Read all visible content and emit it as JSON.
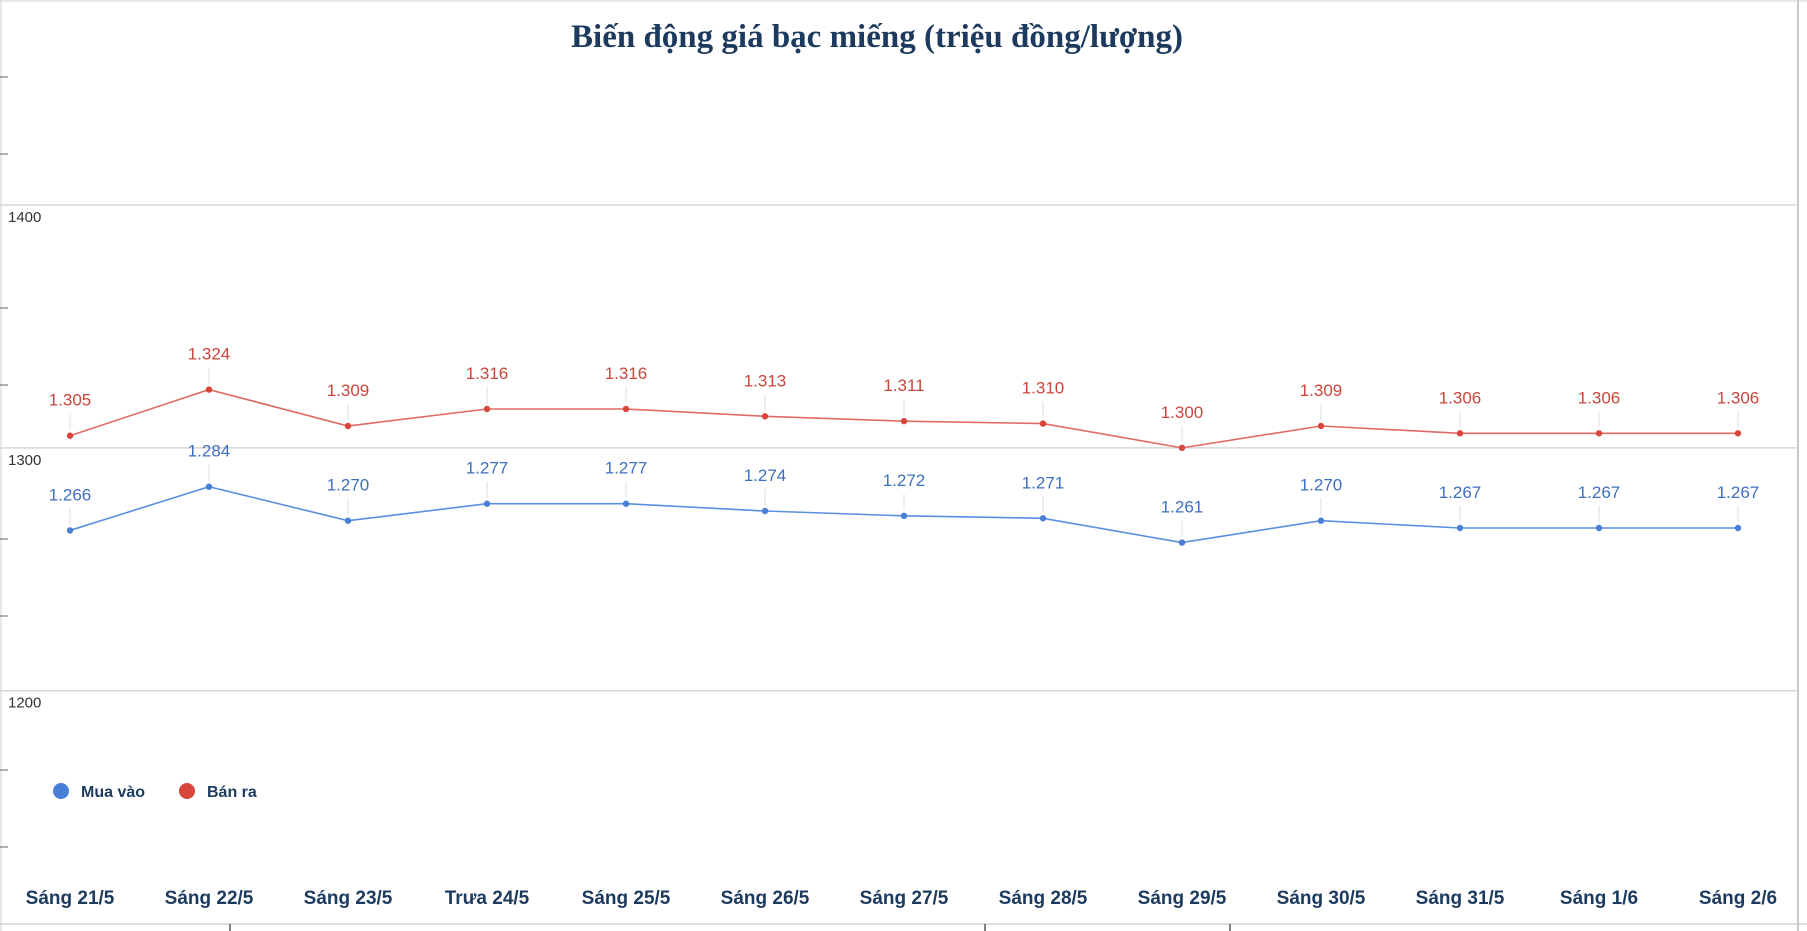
{
  "chart_data": {
    "type": "line",
    "title": "Biến động giá bạc miếng (triệu đồng/lượng)",
    "xlabel": "",
    "ylabel": "",
    "categories": [
      "Sáng 21/5",
      "Sáng 22/5",
      "Sáng 23/5",
      "Trưa 24/5",
      "Sáng 25/5",
      "Sáng 26/5",
      "Sáng 27/5",
      "Sáng 28/5",
      "Sáng 29/5",
      "Sáng 30/5",
      "Sáng 31/5",
      "Sáng 1/6",
      "Sáng 2/6"
    ],
    "ylim": [
      1134,
      1484
    ],
    "yticks": [
      {
        "value": 1200,
        "label": "1200"
      },
      {
        "value": 1300,
        "label": "1300"
      },
      {
        "value": 1400,
        "label": "1400"
      }
    ],
    "grid": true,
    "legend_position": "bottom-left",
    "series": [
      {
        "name": "Mua vào",
        "color": "#5b8fe0",
        "marker_color": "#4a7fd6",
        "label_color": "#3f6fbf",
        "values": [
          1266,
          1284,
          1270,
          1277,
          1277,
          1274,
          1272,
          1271,
          1261,
          1270,
          1267,
          1267,
          1267
        ],
        "labels": [
          "1.266",
          "1.284",
          "1.270",
          "1.277",
          "1.277",
          "1.274",
          "1.272",
          "1.271",
          "1.261",
          "1.270",
          "1.267",
          "1.267",
          "1.267"
        ]
      },
      {
        "name": "Bán ra",
        "color": "#e06b62",
        "marker_color": "#d9463c",
        "label_color": "#c9463c",
        "values": [
          1305,
          1324,
          1309,
          1316,
          1316,
          1313,
          1311,
          1310,
          1300,
          1309,
          1306,
          1306,
          1306
        ],
        "labels": [
          "1.305",
          "1.324",
          "1.309",
          "1.316",
          "1.316",
          "1.313",
          "1.311",
          "1.310",
          "1.300",
          "1.309",
          "1.306",
          "1.306",
          "1.306"
        ]
      }
    ]
  }
}
